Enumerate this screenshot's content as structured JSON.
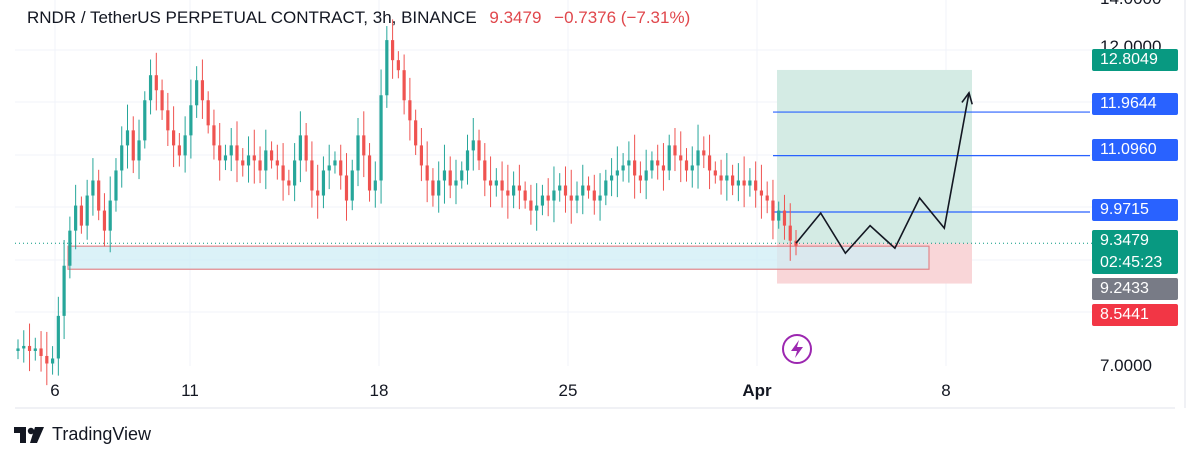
{
  "header": {
    "symbol": "RNDR / TetherUS PERPETUAL CONTRACT, 3h, BINANCE",
    "price": "9.3479",
    "change": "−0.7376 (−7.31%)"
  },
  "brand": {
    "name": "TradingView",
    "icon": "tradingview-logo"
  },
  "colors": {
    "up": "#26a69a",
    "down": "#ef5350",
    "target_zone": "#d4ebe4",
    "stop_zone": "#f9d6d8",
    "demand_zone": "#cfeef6",
    "level_line": "#2962ff",
    "last_price": "#089981",
    "level_label": "#2962ff",
    "target_label": "#089981",
    "stop_label": "#f23645",
    "prev_label": "#787b86"
  },
  "chart_data": {
    "type": "candlestick",
    "title": "RNDR / TetherUS PERPETUAL CONTRACT, 3h, BINANCE",
    "x_tick_labels": [
      "6",
      "11",
      "18",
      "25",
      "Apr",
      "8"
    ],
    "y_tick_labels": [
      "14.0000",
      "12.0000",
      "7.0000"
    ],
    "ylim": [
      6.9,
      14.2
    ],
    "last_price": 9.3479,
    "countdown": "02:45:23",
    "price_labels": [
      {
        "name": "target",
        "value": "12.8049"
      },
      {
        "name": "level-3",
        "value": "11.9644"
      },
      {
        "name": "level-2",
        "value": "11.0960"
      },
      {
        "name": "level-1",
        "value": "9.9715"
      },
      {
        "name": "last",
        "value": "9.3479"
      },
      {
        "name": "prev-close",
        "value": "9.2433"
      },
      {
        "name": "stop",
        "value": "8.5441"
      }
    ],
    "horizontal_levels": [
      11.9644,
      11.096,
      9.9715
    ],
    "position": {
      "entry": 9.3479,
      "target": 12.8049,
      "stop": 8.5441
    },
    "demand_zone": [
      8.83,
      9.29
    ],
    "projected_path": [
      9.35,
      9.95,
      9.15,
      9.7,
      9.25,
      10.25,
      9.65,
      12.35
    ],
    "closes": [
      7.25,
      7.3,
      7.2,
      7.25,
      7.1,
      6.95,
      7.05,
      7.9,
      8.9,
      9.6,
      10.1,
      9.7,
      10.3,
      10.6,
      10.0,
      9.6,
      10.2,
      10.8,
      11.3,
      11.6,
      11.0,
      11.4,
      12.2,
      12.7,
      12.4,
      12.0,
      11.6,
      11.3,
      11.1,
      11.5,
      12.1,
      12.6,
      12.2,
      11.7,
      11.3,
      11.0,
      11.1,
      11.3,
      11.0,
      10.9,
      11.1,
      11.0,
      10.8,
      11.2,
      11.0,
      10.9,
      10.6,
      10.5,
      11.0,
      11.5,
      11.0,
      10.4,
      10.3,
      10.8,
      10.9,
      11.0,
      10.7,
      10.2,
      10.8,
      11.5,
      11.1,
      10.4,
      10.6,
      12.3,
      13.4,
      13.0,
      12.8,
      12.2,
      11.8,
      11.3,
      10.9,
      10.6,
      10.3,
      10.6,
      10.8,
      10.5,
      10.6,
      10.8,
      11.2,
      11.4,
      11.0,
      10.6,
      10.5,
      10.6,
      10.4,
      10.3,
      10.5,
      10.4,
      10.2,
      10.0,
      10.1,
      10.3,
      10.2,
      10.4,
      10.5,
      10.3,
      10.2,
      10.3,
      10.5,
      10.4,
      10.2,
      10.3,
      10.6,
      10.7,
      10.8,
      10.9,
      11.0,
      10.7,
      10.6,
      10.8,
      11.0,
      10.9,
      10.8,
      11.3,
      11.1,
      11.0,
      10.8,
      10.9,
      11.2,
      11.1,
      10.8,
      10.7,
      10.6,
      10.7,
      10.5,
      10.6,
      10.5,
      10.6,
      10.4,
      10.3,
      10.2,
      9.8,
      10.0,
      9.7,
      9.4,
      9.3
    ]
  }
}
